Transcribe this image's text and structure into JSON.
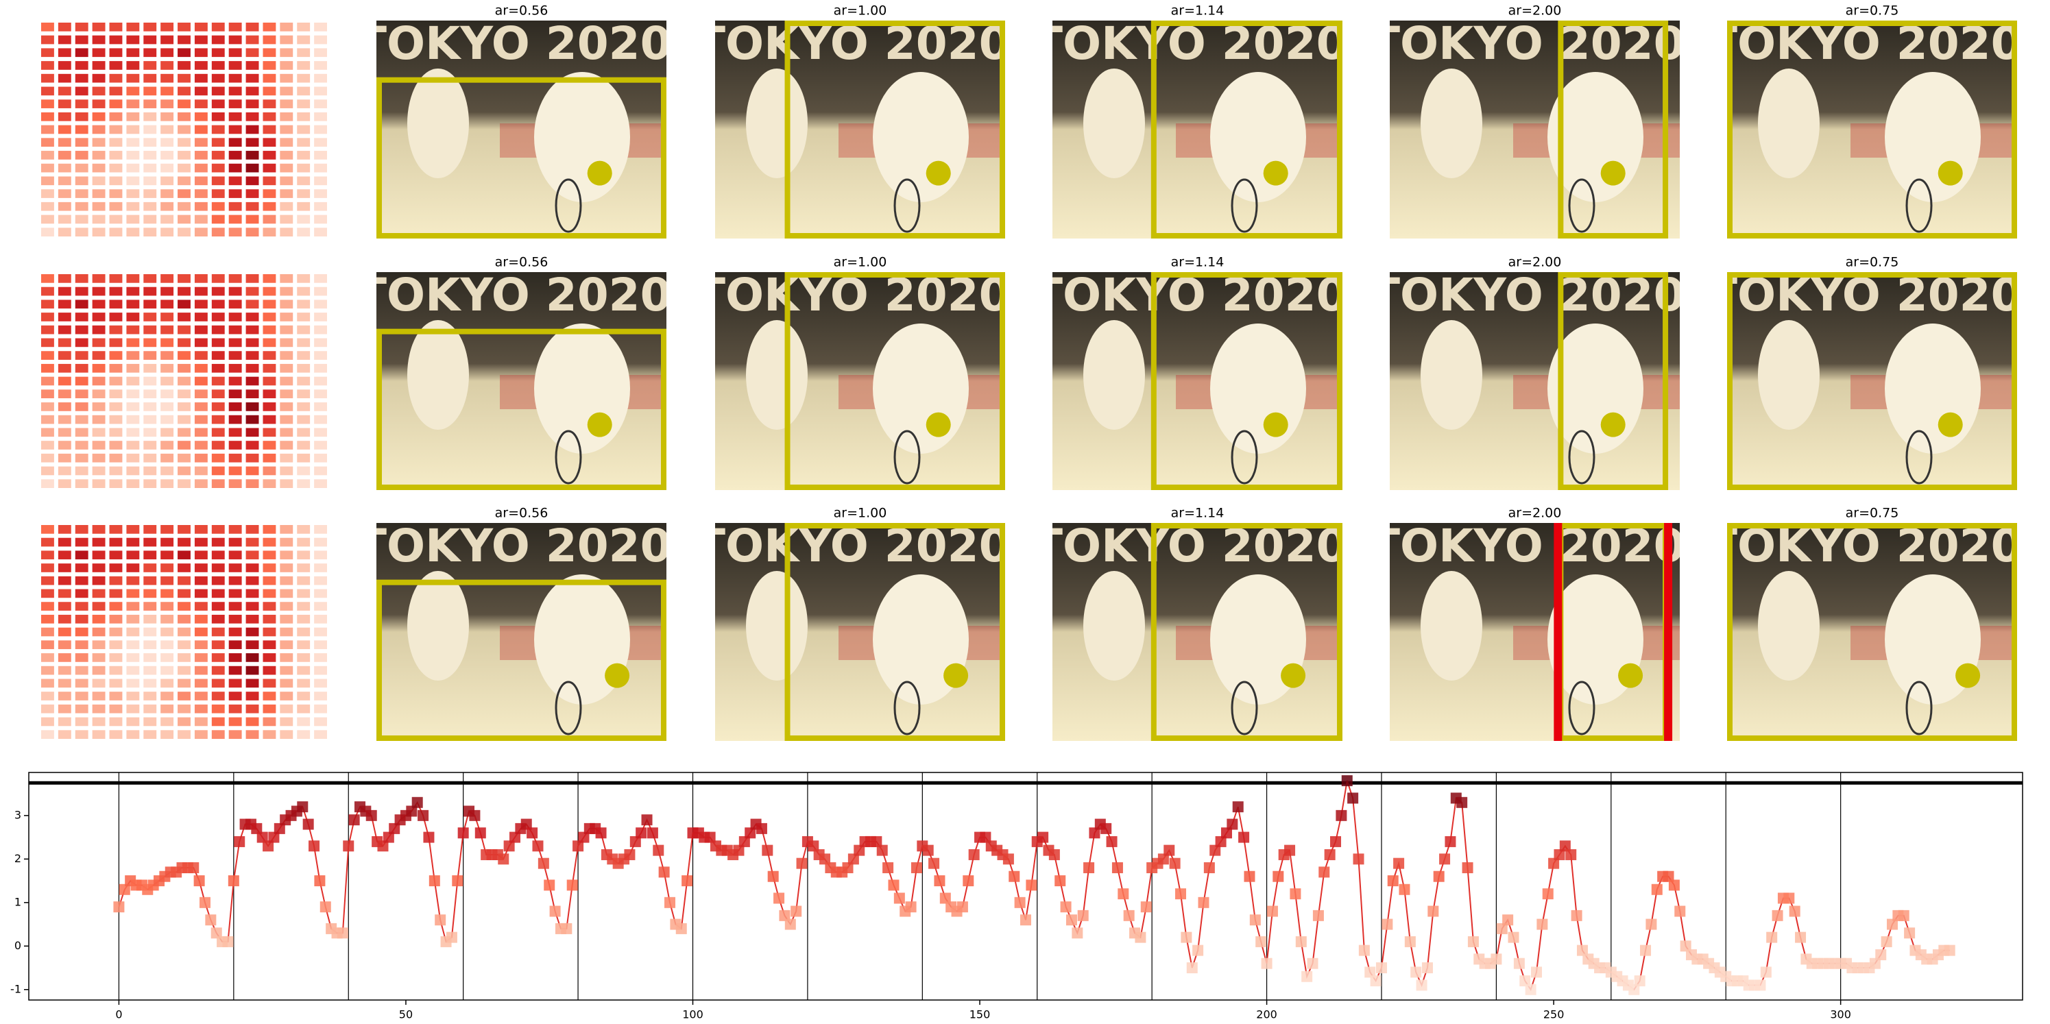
{
  "panels": {
    "titles": [
      "ar=0.56",
      "ar=1.00",
      "ar=1.14",
      "ar=2.00",
      "ar=0.75"
    ],
    "photo_text": "TOKYO 2020",
    "box_color": "#c8be00",
    "highlight_color": "#e8000b"
  },
  "heatmap": {
    "colormap": [
      "#fff5f0",
      "#fcbba1",
      "#fb6a4a",
      "#cb181d",
      "#67000d"
    ],
    "values": [
      [
        0.5,
        0.6,
        0.6,
        0.6,
        0.6,
        0.6,
        0.6,
        0.6,
        0.6,
        0.6,
        0.6,
        0.6,
        0.6,
        0.5,
        0.3,
        0.2,
        0.1
      ],
      [
        0.6,
        0.7,
        0.7,
        0.7,
        0.7,
        0.7,
        0.7,
        0.7,
        0.7,
        0.7,
        0.7,
        0.7,
        0.6,
        0.5,
        0.3,
        0.2,
        0.1
      ],
      [
        0.6,
        0.7,
        0.8,
        0.7,
        0.7,
        0.7,
        0.7,
        0.7,
        0.8,
        0.7,
        0.7,
        0.7,
        0.6,
        0.5,
        0.3,
        0.2,
        0.1
      ],
      [
        0.6,
        0.7,
        0.7,
        0.7,
        0.7,
        0.7,
        0.6,
        0.6,
        0.7,
        0.7,
        0.7,
        0.7,
        0.7,
        0.5,
        0.3,
        0.2,
        0.1
      ],
      [
        0.6,
        0.7,
        0.7,
        0.7,
        0.6,
        0.6,
        0.6,
        0.6,
        0.6,
        0.7,
        0.7,
        0.7,
        0.7,
        0.5,
        0.3,
        0.2,
        0.1
      ],
      [
        0.6,
        0.6,
        0.7,
        0.6,
        0.6,
        0.5,
        0.5,
        0.5,
        0.6,
        0.7,
        0.7,
        0.7,
        0.7,
        0.5,
        0.3,
        0.2,
        0.1
      ],
      [
        0.5,
        0.6,
        0.6,
        0.6,
        0.5,
        0.4,
        0.4,
        0.4,
        0.5,
        0.6,
        0.7,
        0.7,
        0.7,
        0.6,
        0.3,
        0.2,
        0.1
      ],
      [
        0.5,
        0.6,
        0.6,
        0.5,
        0.4,
        0.3,
        0.2,
        0.3,
        0.4,
        0.5,
        0.7,
        0.7,
        0.7,
        0.6,
        0.3,
        0.2,
        0.1
      ],
      [
        0.4,
        0.5,
        0.5,
        0.4,
        0.3,
        0.2,
        0.1,
        0.2,
        0.3,
        0.5,
        0.6,
        0.7,
        0.8,
        0.6,
        0.3,
        0.2,
        0.1
      ],
      [
        0.4,
        0.4,
        0.4,
        0.3,
        0.2,
        0.1,
        0.1,
        0.1,
        0.2,
        0.4,
        0.6,
        0.8,
        0.8,
        0.7,
        0.3,
        0.2,
        0.1
      ],
      [
        0.3,
        0.4,
        0.4,
        0.3,
        0.2,
        0.1,
        0.1,
        0.1,
        0.2,
        0.4,
        0.6,
        0.8,
        0.9,
        0.7,
        0.3,
        0.2,
        0.1
      ],
      [
        0.3,
        0.3,
        0.3,
        0.3,
        0.2,
        0.1,
        0.1,
        0.1,
        0.2,
        0.4,
        0.6,
        0.8,
        0.9,
        0.7,
        0.3,
        0.2,
        0.1
      ],
      [
        0.3,
        0.3,
        0.3,
        0.2,
        0.2,
        0.1,
        0.1,
        0.2,
        0.3,
        0.4,
        0.6,
        0.7,
        0.8,
        0.6,
        0.3,
        0.2,
        0.1
      ],
      [
        0.2,
        0.3,
        0.3,
        0.3,
        0.3,
        0.2,
        0.2,
        0.3,
        0.4,
        0.4,
        0.6,
        0.7,
        0.7,
        0.5,
        0.3,
        0.2,
        0.1
      ],
      [
        0.2,
        0.3,
        0.3,
        0.3,
        0.3,
        0.2,
        0.2,
        0.3,
        0.3,
        0.4,
        0.5,
        0.6,
        0.6,
        0.5,
        0.2,
        0.2,
        0.1
      ],
      [
        0.2,
        0.2,
        0.2,
        0.2,
        0.2,
        0.2,
        0.2,
        0.2,
        0.3,
        0.3,
        0.5,
        0.5,
        0.5,
        0.4,
        0.2,
        0.1,
        0.1
      ],
      [
        0.1,
        0.2,
        0.2,
        0.2,
        0.2,
        0.2,
        0.2,
        0.2,
        0.2,
        0.3,
        0.4,
        0.4,
        0.4,
        0.3,
        0.2,
        0.1,
        0.1
      ]
    ]
  },
  "chart_data": {
    "type": "line",
    "color": "#e0302b",
    "colormap": [
      "#fee0d2",
      "#fcbba1",
      "#fb6a4a",
      "#cb181d",
      "#67000d"
    ],
    "x": [
      0,
      1,
      2,
      3,
      4,
      5,
      6,
      7,
      8,
      9,
      10,
      11,
      12,
      13,
      14,
      15,
      16,
      17,
      18,
      19,
      20,
      21,
      22,
      23,
      24,
      25,
      26,
      27,
      28,
      29,
      30,
      31,
      32,
      33,
      34,
      35,
      36,
      37,
      38,
      39,
      40,
      41,
      42,
      43,
      44,
      45,
      46,
      47,
      48,
      49,
      50,
      51,
      52,
      53,
      54,
      55,
      56,
      57,
      58,
      59,
      60,
      61,
      62,
      63,
      64,
      65,
      66,
      67,
      68,
      69,
      70,
      71,
      72,
      73,
      74,
      75,
      76,
      77,
      78,
      79,
      80,
      81,
      82,
      83,
      84,
      85,
      86,
      87,
      88,
      89,
      90,
      91,
      92,
      93,
      94,
      95,
      96,
      97,
      98,
      99,
      100,
      101,
      102,
      103,
      104,
      105,
      106,
      107,
      108,
      109,
      110,
      111,
      112,
      113,
      114,
      115,
      116,
      117,
      118,
      119,
      120,
      121,
      122,
      123,
      124,
      125,
      126,
      127,
      128,
      129,
      130,
      131,
      132,
      133,
      134,
      135,
      136,
      137,
      138,
      139,
      140,
      141,
      142,
      143,
      144,
      145,
      146,
      147,
      148,
      149,
      150,
      151,
      152,
      153,
      154,
      155,
      156,
      157,
      158,
      159,
      160,
      161,
      162,
      163,
      164,
      165,
      166,
      167,
      168,
      169,
      170,
      171,
      172,
      173,
      174,
      175,
      176,
      177,
      178,
      179,
      180,
      181,
      182,
      183,
      184,
      185,
      186,
      187,
      188,
      189,
      190,
      191,
      192,
      193,
      194,
      195,
      196,
      197,
      198,
      199,
      200,
      201,
      202,
      203,
      204,
      205,
      206,
      207,
      208,
      209,
      210,
      211,
      212,
      213,
      214,
      215,
      216,
      217,
      218,
      219,
      220,
      221,
      222,
      223,
      224,
      225,
      226,
      227,
      228,
      229,
      230,
      231,
      232,
      233,
      234,
      235,
      236,
      237,
      238,
      239,
      240,
      241,
      242,
      243,
      244,
      245,
      246,
      247,
      248,
      249,
      250,
      251,
      252,
      253,
      254,
      255,
      256,
      257,
      258,
      259,
      260,
      261,
      262,
      263,
      264,
      265,
      266,
      267,
      268,
      269,
      270,
      271,
      272,
      273,
      274,
      275,
      276,
      277,
      278,
      279,
      280,
      281,
      282,
      283,
      284,
      285,
      286,
      287,
      288,
      289,
      290,
      291,
      292,
      293,
      294,
      295,
      296,
      297,
      298,
      299,
      300,
      301,
      302,
      303,
      304,
      305,
      306,
      307,
      308,
      309,
      310,
      311,
      312,
      313,
      314,
      315,
      316,
      317,
      318,
      319
    ],
    "values": [
      0.9,
      1.3,
      1.5,
      1.4,
      1.4,
      1.3,
      1.4,
      1.5,
      1.6,
      1.7,
      1.7,
      1.8,
      1.8,
      1.8,
      1.5,
      1.0,
      0.6,
      0.3,
      0.1,
      0.1,
      1.5,
      2.4,
      2.8,
      2.8,
      2.7,
      2.5,
      2.3,
      2.5,
      2.7,
      2.9,
      3.0,
      3.1,
      3.2,
      2.8,
      2.3,
      1.5,
      0.9,
      0.4,
      0.3,
      0.3,
      2.3,
      2.9,
      3.2,
      3.1,
      3.0,
      2.4,
      2.3,
      2.5,
      2.7,
      2.9,
      3.0,
      3.1,
      3.3,
      3.0,
      2.5,
      1.5,
      0.6,
      0.1,
      0.2,
      1.5,
      2.6,
      3.1,
      3.0,
      2.6,
      2.1,
      2.1,
      2.1,
      2.0,
      2.3,
      2.5,
      2.7,
      2.8,
      2.6,
      2.3,
      1.9,
      1.4,
      0.8,
      0.4,
      0.4,
      1.4,
      2.3,
      2.5,
      2.7,
      2.7,
      2.6,
      2.1,
      2.0,
      1.9,
      2.0,
      2.1,
      2.4,
      2.6,
      2.9,
      2.6,
      2.2,
      1.7,
      1.0,
      0.5,
      0.4,
      1.5,
      2.6,
      2.6,
      2.5,
      2.5,
      2.3,
      2.2,
      2.2,
      2.1,
      2.2,
      2.4,
      2.6,
      2.8,
      2.7,
      2.2,
      1.6,
      1.1,
      0.7,
      0.5,
      0.8,
      1.9,
      2.4,
      2.3,
      2.1,
      2.0,
      1.8,
      1.7,
      1.7,
      1.8,
      2.0,
      2.2,
      2.4,
      2.4,
      2.4,
      2.2,
      1.8,
      1.4,
      1.1,
      0.8,
      0.9,
      1.8,
      2.3,
      2.2,
      1.9,
      1.5,
      1.1,
      0.9,
      0.8,
      0.9,
      1.5,
      2.1,
      2.5,
      2.5,
      2.3,
      2.2,
      2.1,
      2.0,
      1.6,
      1.0,
      0.6,
      1.4,
      2.4,
      2.5,
      2.2,
      2.1,
      1.5,
      0.9,
      0.6,
      0.3,
      0.7,
      1.8,
      2.6,
      2.8,
      2.7,
      2.4,
      1.8,
      1.2,
      0.7,
      0.3,
      0.2,
      0.9,
      1.8,
      1.9,
      2.0,
      2.2,
      1.9,
      1.2,
      0.2,
      -0.5,
      -0.1,
      1.0,
      1.8,
      2.2,
      2.4,
      2.6,
      2.8,
      3.2,
      2.5,
      1.6,
      0.6,
      0.1,
      -0.4,
      0.8,
      1.6,
      2.1,
      2.2,
      1.2,
      0.1,
      -0.7,
      -0.4,
      0.7,
      1.7,
      2.1,
      2.4,
      3.0,
      3.8,
      3.4,
      2.0,
      -0.1,
      -0.6,
      -0.8,
      -0.5,
      0.5,
      1.5,
      1.9,
      1.3,
      0.1,
      -0.6,
      -0.9,
      -0.5,
      0.8,
      1.6,
      2.0,
      2.4,
      3.4,
      3.3,
      1.8,
      0.1,
      -0.3,
      -0.4,
      -0.4,
      -0.3,
      0.4,
      0.6,
      0.2,
      -0.4,
      -0.8,
      -1.0,
      -0.6,
      0.5,
      1.2,
      1.9,
      2.1,
      2.3,
      2.1,
      0.7,
      -0.1,
      -0.3,
      -0.4,
      -0.5,
      -0.5,
      -0.6,
      -0.7,
      -0.8,
      -0.9,
      -1.0,
      -0.8,
      -0.1,
      0.5,
      1.3,
      1.6,
      1.6,
      1.4,
      0.8,
      0.0,
      -0.2,
      -0.3,
      -0.3,
      -0.4,
      -0.5,
      -0.6,
      -0.7,
      -0.8,
      -0.8,
      -0.8,
      -0.9,
      -0.9,
      -0.9,
      -0.6,
      0.2,
      0.7,
      1.1,
      1.1,
      0.8,
      0.2,
      -0.3,
      -0.4,
      -0.4,
      -0.4,
      -0.4,
      -0.4,
      -0.4,
      -0.4,
      -0.5,
      -0.5,
      -0.5,
      -0.5,
      -0.4,
      -0.2,
      0.1,
      0.5,
      0.7,
      0.7,
      0.3,
      -0.1,
      -0.2,
      -0.3,
      -0.3,
      -0.2,
      -0.1,
      -0.1
    ],
    "xlim": [
      -15.7,
      331.7
    ],
    "ylim": [
      -1.24,
      3.99
    ],
    "xticks": [
      0,
      50,
      100,
      150,
      200,
      250,
      300
    ],
    "yticks": [
      -1,
      0,
      1,
      2,
      3
    ],
    "vlines": [
      0,
      20,
      40,
      60,
      80,
      100,
      120,
      140,
      160,
      180,
      200,
      220,
      240,
      260,
      280,
      300
    ],
    "hline": 3.75
  }
}
